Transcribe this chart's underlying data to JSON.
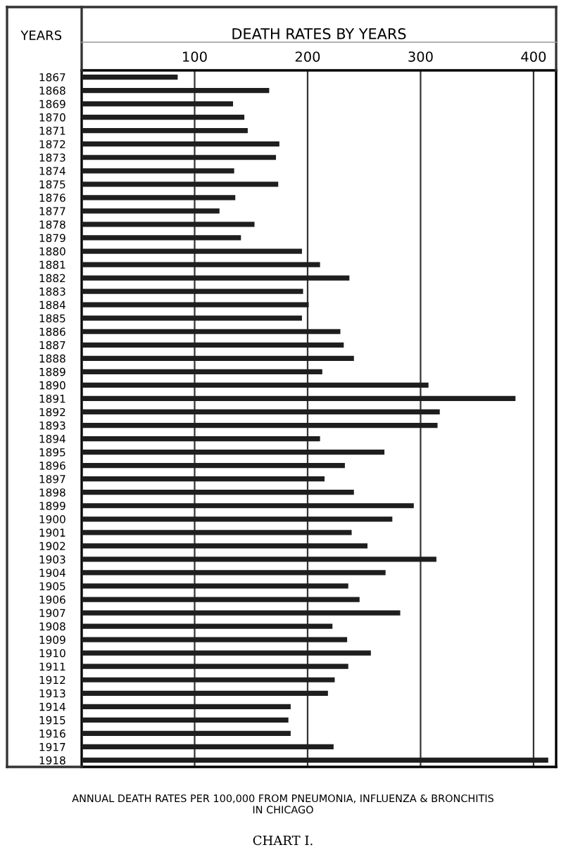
{
  "chart_data": {
    "type": "bar",
    "orientation": "horizontal",
    "title": "DEATH RATES BY YEARS",
    "ylabel": "YEARS",
    "categories": [
      "1867",
      "1868",
      "1869",
      "1870",
      "1871",
      "1872",
      "1873",
      "1874",
      "1875",
      "1876",
      "1877",
      "1878",
      "1879",
      "1880",
      "1881",
      "1882",
      "1883",
      "1884",
      "1885",
      "1886",
      "1887",
      "1888",
      "1889",
      "1890",
      "1891",
      "1892",
      "1893",
      "1894",
      "1895",
      "1896",
      "1897",
      "1898",
      "1899",
      "1900",
      "1901",
      "1902",
      "1903",
      "1904",
      "1905",
      "1906",
      "1907",
      "1908",
      "1909",
      "1910",
      "1911",
      "1912",
      "1913",
      "1914",
      "1915",
      "1916",
      "1917",
      "1918"
    ],
    "values": [
      85,
      166,
      134,
      144,
      147,
      175,
      172,
      135,
      174,
      136,
      122,
      153,
      141,
      195,
      211,
      237,
      196,
      201,
      195,
      229,
      232,
      241,
      213,
      307,
      384,
      317,
      315,
      211,
      268,
      233,
      215,
      241,
      294,
      275,
      239,
      253,
      314,
      269,
      236,
      246,
      282,
      222,
      235,
      256,
      236,
      224,
      218,
      185,
      183,
      185,
      223,
      413
    ],
    "color": "#1e1e1e",
    "xlim": [
      0,
      420
    ],
    "xticks": [
      100,
      200,
      300,
      400
    ],
    "grid": "x",
    "annotations": [
      "ANNUAL DEATH RATES PER 100,000 FROM PNEUMONIA, INFLUENZA & BRONCHITIS\nIN CHICAGO",
      "CHART I."
    ]
  }
}
